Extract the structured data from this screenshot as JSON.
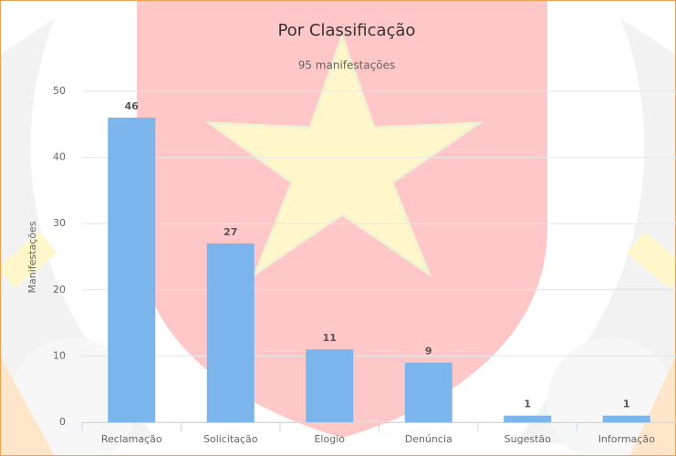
{
  "chart_data": {
    "type": "bar",
    "title": "Por Classificação",
    "subtitle": "95 manifestações",
    "y_label": "Manifestações",
    "categories": [
      "Reclamação",
      "Solicitação",
      "Elogio",
      "Denúncia",
      "Sugestão",
      "Informação"
    ],
    "values": [
      46,
      27,
      11,
      9,
      1,
      1
    ],
    "color": "#7cb5ec",
    "ylim": [
      0,
      50
    ],
    "yticks": [
      0,
      10,
      20,
      30,
      40,
      50
    ],
    "grid": true,
    "data_labels": true
  }
}
